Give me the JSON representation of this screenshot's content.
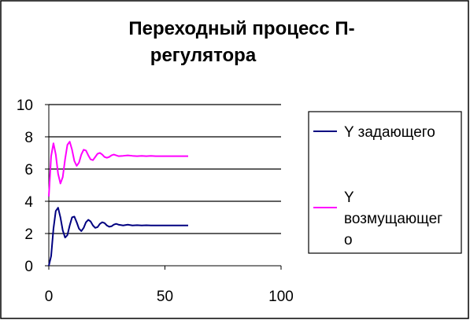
{
  "chart_data": {
    "type": "line",
    "title": "Переходный процесс П-регулятора",
    "title_lines": [
      "Переходный процесс П-",
      "регулятора"
    ],
    "xlabel": "",
    "ylabel": "",
    "xlim": [
      0,
      100
    ],
    "ylim": [
      0,
      10
    ],
    "x_ticks": [
      "0",
      "50",
      "100"
    ],
    "y_ticks": [
      "0",
      "2",
      "4",
      "6",
      "8",
      "10"
    ],
    "grid": "horizontal",
    "legend_position": "right",
    "series": [
      {
        "name": "Y задающего",
        "legend_lines": [
          "Y задающего"
        ],
        "color": "#000080",
        "x": [
          0,
          1,
          2,
          3,
          4,
          5,
          6,
          7,
          8,
          9,
          10,
          11,
          12,
          13,
          14,
          15,
          16,
          17,
          18,
          19,
          20,
          21,
          22,
          23,
          24,
          25,
          26,
          27,
          28,
          29,
          30,
          32,
          34,
          36,
          38,
          40,
          42,
          44,
          46,
          48,
          50,
          52,
          54,
          56,
          58,
          60
        ],
        "y": [
          0,
          0.6,
          2.3,
          3.4,
          3.6,
          3.0,
          2.2,
          1.75,
          1.9,
          2.5,
          3.0,
          3.05,
          2.7,
          2.3,
          2.15,
          2.35,
          2.7,
          2.85,
          2.75,
          2.5,
          2.35,
          2.4,
          2.6,
          2.7,
          2.65,
          2.5,
          2.42,
          2.45,
          2.55,
          2.6,
          2.55,
          2.5,
          2.55,
          2.5,
          2.52,
          2.5,
          2.51,
          2.5,
          2.5,
          2.5,
          2.5,
          2.5,
          2.5,
          2.5,
          2.5,
          2.5
        ]
      },
      {
        "name": "Y возмущающего",
        "legend_lines": [
          "Y",
          "возмущающег",
          "о"
        ],
        "color": "#ff00ff",
        "x": [
          0,
          1,
          2,
          3,
          4,
          5,
          6,
          7,
          8,
          9,
          10,
          11,
          12,
          13,
          14,
          15,
          16,
          17,
          18,
          19,
          20,
          21,
          22,
          23,
          24,
          25,
          26,
          27,
          28,
          29,
          30,
          32,
          34,
          36,
          38,
          40,
          42,
          44,
          46,
          48,
          50,
          52,
          54,
          56,
          58,
          60
        ],
        "y": [
          4.3,
          6.8,
          7.6,
          6.9,
          5.7,
          5.1,
          5.5,
          6.6,
          7.5,
          7.7,
          7.2,
          6.5,
          6.2,
          6.4,
          6.9,
          7.2,
          7.15,
          6.85,
          6.6,
          6.55,
          6.75,
          6.95,
          7.0,
          6.9,
          6.75,
          6.7,
          6.75,
          6.85,
          6.9,
          6.85,
          6.8,
          6.82,
          6.85,
          6.82,
          6.8,
          6.82,
          6.8,
          6.82,
          6.8,
          6.8,
          6.8,
          6.8,
          6.8,
          6.8,
          6.8,
          6.8
        ]
      }
    ]
  }
}
